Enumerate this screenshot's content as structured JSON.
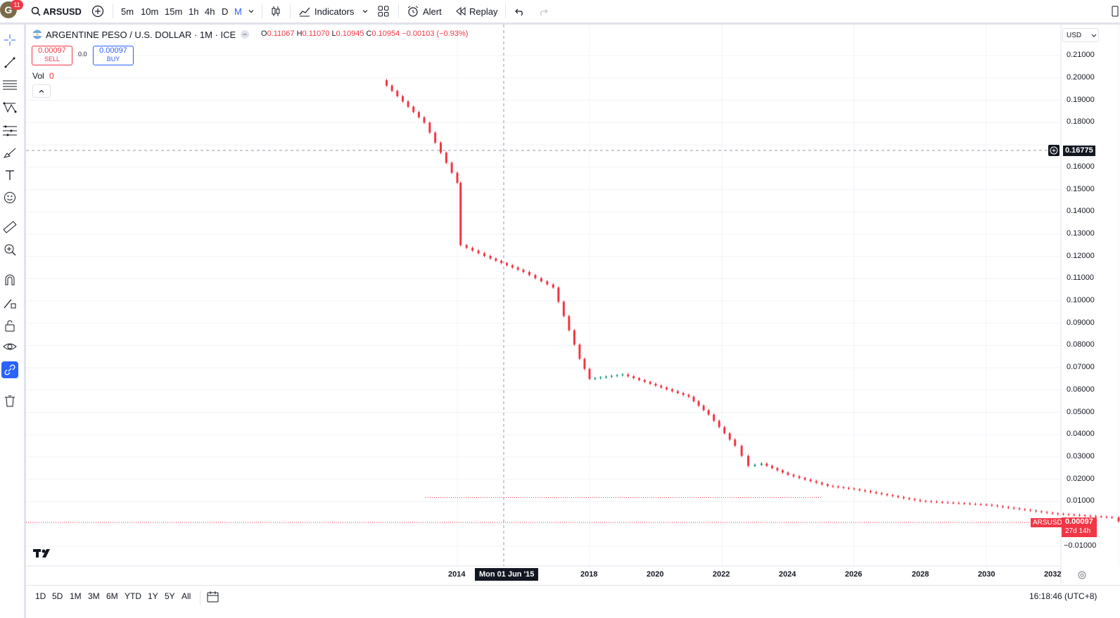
{
  "user": {
    "initial": "G",
    "notifications": "11"
  },
  "toolbar": {
    "symbol": "ARSUSD",
    "intervals": [
      "5m",
      "10m",
      "15m",
      "1h",
      "4h",
      "D",
      "M"
    ],
    "active_interval": "M",
    "indicators_label": "Indicators",
    "alert_label": "Alert",
    "replay_label": "Replay"
  },
  "legend": {
    "title": "ARGENTINE PESO / U.S. DOLLAR · 1M · ICE",
    "open_label": "O",
    "open": "0.11067",
    "high_label": "H",
    "high": "0.11070",
    "low_label": "L",
    "low": "0.10945",
    "close_label": "C",
    "close": "0.10954",
    "change": "−0.00103 (−0.93%)",
    "vol_label": "Vol",
    "vol_value": "0"
  },
  "trade": {
    "sell_price": "0.00097",
    "sell_label": "SELL",
    "spread": "0.0",
    "buy_price": "0.00097",
    "buy_label": "BUY"
  },
  "price_axis": {
    "currency": "USD",
    "ticks": [
      "0.21000",
      "0.20000",
      "0.19000",
      "0.18000",
      "0.16000",
      "0.15000",
      "0.14000",
      "0.13000",
      "0.12000",
      "0.11000",
      "0.10000",
      "0.09000",
      "0.08000",
      "0.07000",
      "0.06000",
      "0.05000",
      "0.04000",
      "0.03000",
      "0.02000",
      "0.01000",
      "−0.01000"
    ],
    "crosshair_price": "0.16775",
    "last_price": "0.00097",
    "countdown": "27d 14h",
    "symbol_tag": "ARSUSD"
  },
  "time_axis": {
    "labels": [
      "2014",
      "2018",
      "2020",
      "2022",
      "2024",
      "2026",
      "2028",
      "2030",
      "2032"
    ],
    "crosshair_date": "Mon 01 Jun '15"
  },
  "bottombar": {
    "ranges": [
      "1D",
      "5D",
      "1M",
      "3M",
      "6M",
      "YTD",
      "1Y",
      "5Y",
      "All"
    ],
    "clock": "16:18:46 (UTC+8)"
  },
  "colors": {
    "down": "#f23645",
    "up": "#089981",
    "accent": "#2962ff"
  },
  "chart_data": {
    "type": "candlestick",
    "title": "ARGENTINE PESO / U.S. DOLLAR · 1M · ICE",
    "ylim": [
      -0.015,
      0.215
    ],
    "xlim": [
      2009.0,
      2032.2
    ],
    "series": [
      {
        "x": [
          2012.85,
          2013.5,
          2014.0,
          2014.05,
          2014.5,
          2015.0,
          2015.45,
          2015.85,
          2016.0,
          2016.5,
          2017.0,
          2017.5,
          2017.8,
          2018.2,
          2018.4,
          2018.6,
          2019.0,
          2019.6,
          2020.0,
          2021.0,
          2022.0,
          2023.0,
          2023.9,
          2024.0,
          2025.0
        ],
        "y": [
          0.199,
          0.18,
          0.153,
          0.125,
          0.119,
          0.113,
          0.106,
          0.074,
          0.065,
          0.067,
          0.062,
          0.057,
          0.049,
          0.035,
          0.026,
          0.027,
          0.022,
          0.017,
          0.0155,
          0.0102,
          0.0085,
          0.0046,
          0.0028,
          0.0011,
          0.00097
        ]
      }
    ]
  }
}
